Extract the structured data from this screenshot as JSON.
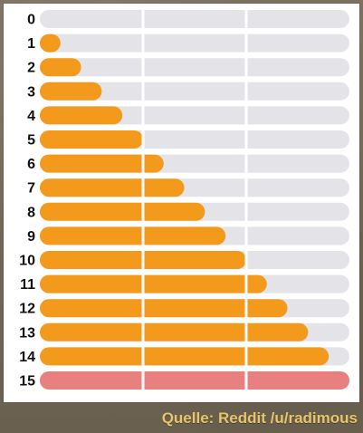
{
  "chart_data": {
    "type": "bar",
    "orientation": "horizontal",
    "categories": [
      "0",
      "1",
      "2",
      "3",
      "4",
      "5",
      "6",
      "7",
      "8",
      "9",
      "10",
      "11",
      "12",
      "13",
      "14",
      "15"
    ],
    "values": [
      0,
      1,
      2,
      3,
      4,
      5,
      6,
      7,
      8,
      9,
      10,
      11,
      12,
      13,
      14,
      15
    ],
    "xlim": [
      0,
      15
    ],
    "grid": true,
    "colors": {
      "bar": "#f39a1c",
      "full_bar": "#e88080",
      "track": "#e4e4e8",
      "grid": "#ffffff"
    }
  },
  "footer": {
    "source": "Quelle: Reddit /u/radimous"
  }
}
